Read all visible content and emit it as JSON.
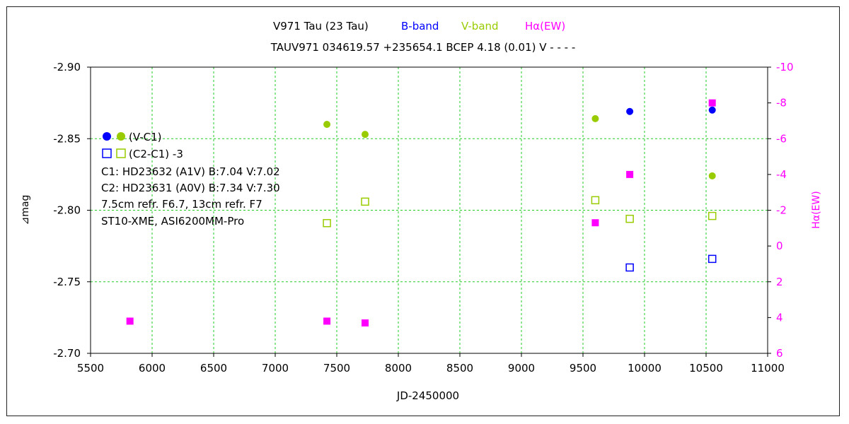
{
  "chart_data": {
    "type": "scatter",
    "title": {
      "star": "V971 Tau (23 Tau)",
      "bands": [
        {
          "label": "B-band",
          "color": "#0000ff"
        },
        {
          "label": "V-band",
          "color": "#99cc00"
        },
        {
          "label": "Hα(EW)",
          "color": "#ff00ff"
        }
      ]
    },
    "subtitle": "TAUV971 034619.57 +235654.1 BCEP 4.18 (0.01) V - - - -",
    "xlabel": "JD-2450000",
    "ylabel": "⊿mag",
    "y2label": "Hα(EW)",
    "xlim": [
      5500,
      11000
    ],
    "ylim": [
      -2.7,
      -2.9
    ],
    "y2lim": [
      6,
      -10
    ],
    "xticks": [
      5500,
      6000,
      6500,
      7000,
      7500,
      8000,
      8500,
      9000,
      9500,
      10000,
      10500,
      11000
    ],
    "yticks": [
      -2.9,
      -2.85,
      -2.8,
      -2.75,
      -2.7
    ],
    "ytick_labels": [
      "-2.90",
      "-2.85",
      "-2.80",
      "-2.75",
      "-2.70"
    ],
    "y2ticks": [
      -10,
      -8,
      -6,
      -4,
      -2,
      0,
      2,
      4,
      6
    ],
    "grid": true,
    "legend": {
      "position": "left",
      "lines": [
        "(V-C1)",
        "(C2-C1) -3",
        "C1: HD23632 (A1V)  B:7.04  V:7.02",
        "C2: HD23631 (A0V)  B:7.34  V:7.30",
        "7.5cm refr. F6.7,  13cm refr. F7",
        "ST10-XME,  ASI6200MM-Pro"
      ]
    },
    "series": [
      {
        "name": "(V-C1)",
        "band": "B",
        "marker": "filled-circle",
        "color": "#0000ff",
        "axis": "left",
        "points": [
          [
            9880,
            -2.869
          ],
          [
            10550,
            -2.87
          ]
        ]
      },
      {
        "name": "(V-C1)",
        "band": "V",
        "marker": "filled-circle",
        "color": "#99cc00",
        "axis": "left",
        "points": [
          [
            7420,
            -2.86
          ],
          [
            7730,
            -2.853
          ],
          [
            9600,
            -2.864
          ],
          [
            10550,
            -2.824
          ]
        ]
      },
      {
        "name": "(C2-C1) -3",
        "band": "B",
        "marker": "open-square",
        "color": "#0000ff",
        "axis": "left",
        "points": [
          [
            9880,
            -2.76
          ],
          [
            10550,
            -2.766
          ]
        ]
      },
      {
        "name": "(C2-C1) -3",
        "band": "V",
        "marker": "open-square",
        "color": "#99cc00",
        "axis": "left",
        "points": [
          [
            7420,
            -2.791
          ],
          [
            7730,
            -2.806
          ],
          [
            9600,
            -2.807
          ],
          [
            9880,
            -2.794
          ],
          [
            10550,
            -2.796
          ]
        ]
      },
      {
        "name": "Hα(EW)",
        "band": "Hα",
        "marker": "filled-square",
        "color": "#ff00ff",
        "axis": "right",
        "points": [
          [
            5820,
            4.2
          ],
          [
            7420,
            4.2
          ],
          [
            7730,
            4.3
          ],
          [
            9600,
            -1.3
          ],
          [
            9880,
            -4.0
          ],
          [
            10550,
            -8.0
          ]
        ]
      }
    ]
  }
}
